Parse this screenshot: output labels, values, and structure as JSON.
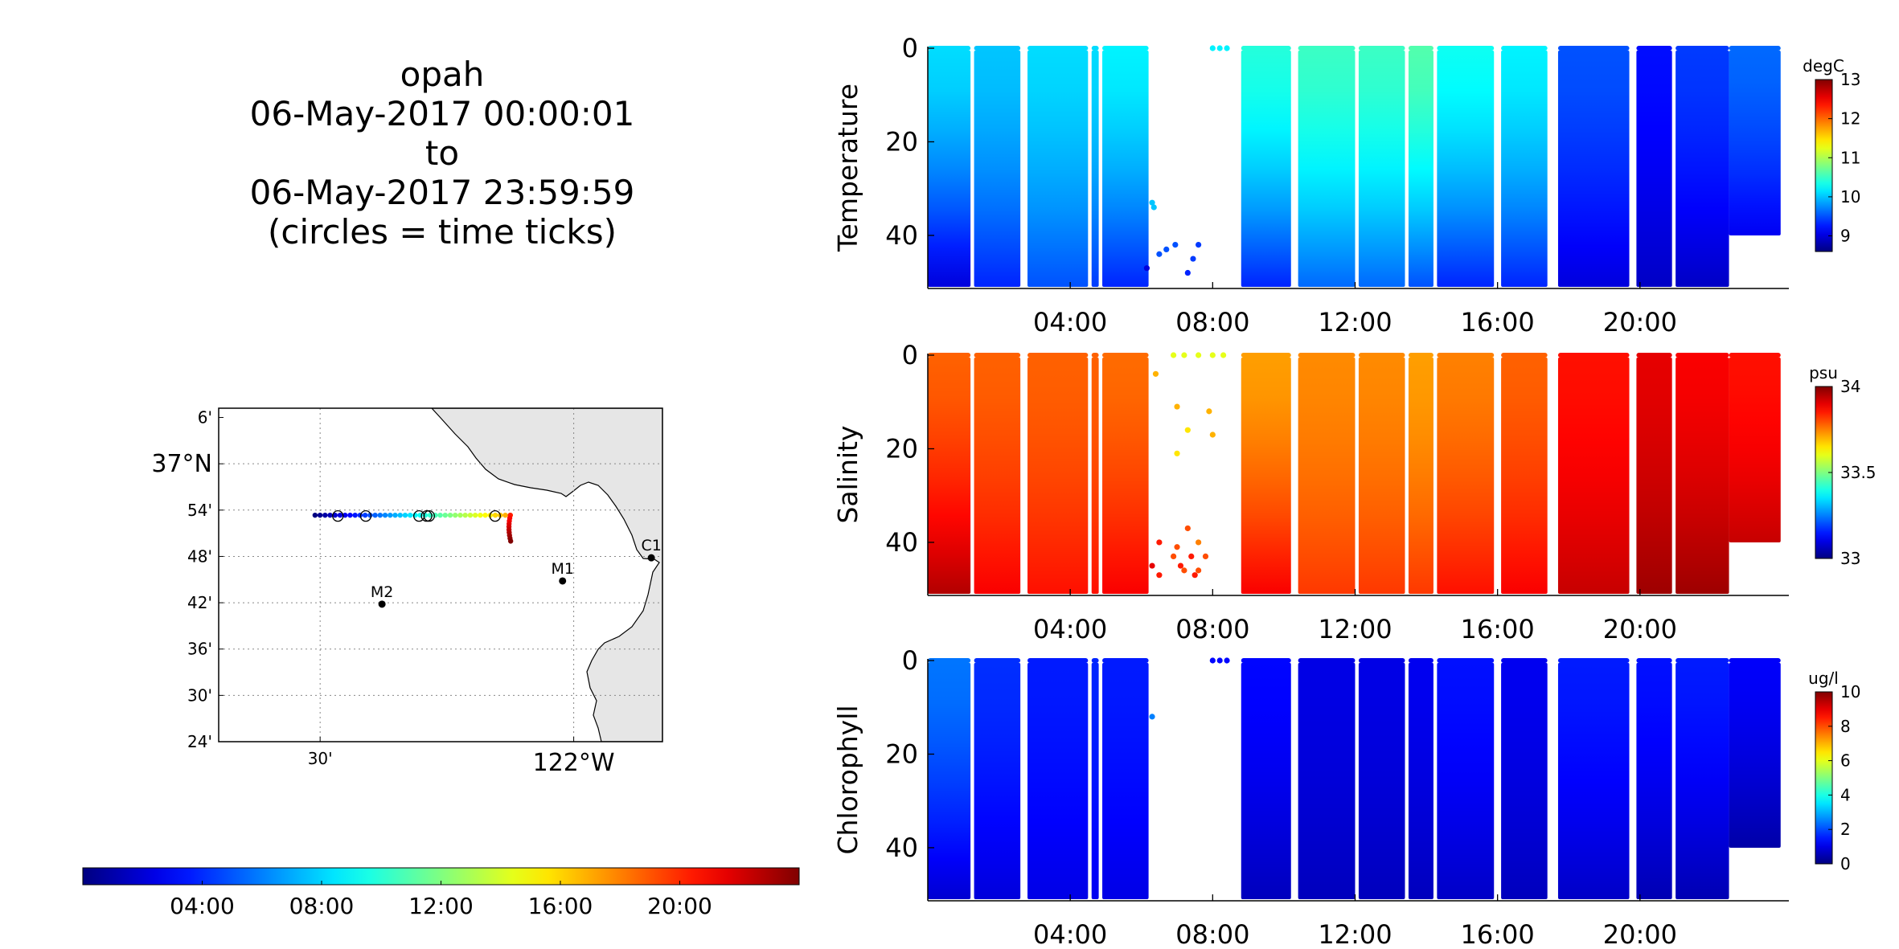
{
  "title_block": {
    "lines": [
      "opah",
      "06-May-2017 00:00:01",
      "to",
      "06-May-2017 23:59:59",
      "(circles = time ticks)"
    ]
  },
  "map": {
    "lat_ticks": [
      "6'",
      "37°N",
      "54'",
      "48'",
      "42'",
      "36'",
      "30'",
      "24'"
    ],
    "lon_ticks": [
      "30'",
      "122°W"
    ],
    "stations": [
      {
        "name": "M1",
        "lat": 36.747,
        "lon": -122.022
      },
      {
        "name": "M2",
        "lat": 36.697,
        "lon": -122.378
      },
      {
        "name": "C1",
        "lat": 36.797,
        "lon": -121.847
      }
    ],
    "track": {
      "lat_start": 36.889,
      "lat_end": 36.833,
      "lon_start": -122.51,
      "lon_end": -122.125
    },
    "time_circle_lons": [
      -122.465,
      -122.41,
      -122.305,
      -122.29,
      -122.285,
      -122.155
    ],
    "land_color": "#e6e6e6"
  },
  "time_colorbar": {
    "ticks": [
      "04:00",
      "08:00",
      "12:00",
      "16:00",
      "20:00"
    ],
    "tick_hours": [
      4,
      8,
      12,
      16,
      20
    ],
    "range_hours": [
      0,
      24
    ]
  },
  "chart_data": [
    {
      "type": "heatmap",
      "ylabel": "Temperature",
      "units": "degC",
      "cbar_range": [
        8.6,
        13
      ],
      "cbar_ticks": [
        "13",
        "12",
        "11",
        "10",
        "9"
      ],
      "cbar_tick_values": [
        13,
        12,
        11,
        10,
        9
      ],
      "x_ticks": [
        "04:00",
        "08:00",
        "12:00",
        "16:00",
        "20:00"
      ],
      "y_ticks": [
        "0",
        "20",
        "40"
      ],
      "y_range": [
        0,
        51
      ],
      "profile_groups": [
        {
          "start": 0.0,
          "end": 1.2,
          "surface": 10.1,
          "bottom": 9.0,
          "max_depth": 51
        },
        {
          "start": 1.3,
          "end": 2.6,
          "surface": 10.0,
          "bottom": 9.3,
          "max_depth": 51
        },
        {
          "start": 2.8,
          "end": 4.5,
          "surface": 10.1,
          "bottom": 9.5,
          "max_depth": 51
        },
        {
          "start": 4.6,
          "end": 4.8,
          "surface": 10.1,
          "bottom": 9.4,
          "max_depth": 51
        },
        {
          "start": 4.9,
          "end": 6.2,
          "surface": 10.2,
          "bottom": 9.3,
          "max_depth": 51
        },
        {
          "start": 8.8,
          "end": 10.2,
          "surface": 10.4,
          "bottom": 9.3,
          "max_depth": 51
        },
        {
          "start": 10.4,
          "end": 12.0,
          "surface": 10.5,
          "bottom": 9.6,
          "max_depth": 51
        },
        {
          "start": 12.1,
          "end": 13.4,
          "surface": 10.5,
          "bottom": 9.6,
          "max_depth": 51
        },
        {
          "start": 13.5,
          "end": 14.2,
          "surface": 10.6,
          "bottom": 9.5,
          "max_depth": 51
        },
        {
          "start": 14.3,
          "end": 15.9,
          "surface": 10.3,
          "bottom": 9.3,
          "max_depth": 51
        },
        {
          "start": 16.1,
          "end": 17.4,
          "surface": 10.2,
          "bottom": 9.3,
          "max_depth": 51
        },
        {
          "start": 17.7,
          "end": 19.7,
          "surface": 9.5,
          "bottom": 9.0,
          "max_depth": 51
        },
        {
          "start": 19.9,
          "end": 20.9,
          "surface": 9.2,
          "bottom": 8.9,
          "max_depth": 51
        },
        {
          "start": 21.0,
          "end": 22.5,
          "surface": 9.4,
          "bottom": 8.9,
          "max_depth": 51
        },
        {
          "start": 22.5,
          "end": 23.95,
          "surface": 9.6,
          "bottom": 9.1,
          "max_depth": 40
        }
      ],
      "points": [
        {
          "t": 6.3,
          "d": 33,
          "v": 10.0
        },
        {
          "t": 6.35,
          "d": 34,
          "v": 10.0
        },
        {
          "t": 6.5,
          "d": 44,
          "v": 9.5
        },
        {
          "t": 6.7,
          "d": 43,
          "v": 9.5
        },
        {
          "t": 6.95,
          "d": 42,
          "v": 9.5
        },
        {
          "t": 7.6,
          "d": 42,
          "v": 9.4
        },
        {
          "t": 7.45,
          "d": 45,
          "v": 9.4
        },
        {
          "t": 7.3,
          "d": 48,
          "v": 9.3
        },
        {
          "t": 6.15,
          "d": 47,
          "v": 9.0
        },
        {
          "t": 8.0,
          "d": 0,
          "v": 10.2
        },
        {
          "t": 8.2,
          "d": 0,
          "v": 10.2
        },
        {
          "t": 8.4,
          "d": 0,
          "v": 10.2
        }
      ]
    },
    {
      "type": "heatmap",
      "ylabel": "Salinity",
      "units": "psu",
      "cbar_range": [
        33,
        34
      ],
      "cbar_ticks": [
        "34",
        "33.5",
        "33"
      ],
      "cbar_tick_values": [
        34,
        33.5,
        33
      ],
      "x_ticks": [
        "04:00",
        "08:00",
        "12:00",
        "16:00",
        "20:00"
      ],
      "y_ticks": [
        "0",
        "20",
        "40"
      ],
      "y_range": [
        0,
        51
      ],
      "profile_groups": [
        {
          "start": 0.0,
          "end": 1.2,
          "surface": 33.78,
          "bottom": 33.95,
          "max_depth": 51
        },
        {
          "start": 1.3,
          "end": 2.6,
          "surface": 33.78,
          "bottom": 33.88,
          "max_depth": 51
        },
        {
          "start": 2.8,
          "end": 4.5,
          "surface": 33.78,
          "bottom": 33.86,
          "max_depth": 51
        },
        {
          "start": 4.6,
          "end": 4.8,
          "surface": 33.78,
          "bottom": 33.86,
          "max_depth": 51
        },
        {
          "start": 4.9,
          "end": 6.2,
          "surface": 33.77,
          "bottom": 33.88,
          "max_depth": 51
        },
        {
          "start": 8.8,
          "end": 10.2,
          "surface": 33.72,
          "bottom": 33.88,
          "max_depth": 51
        },
        {
          "start": 10.4,
          "end": 12.0,
          "surface": 33.74,
          "bottom": 33.82,
          "max_depth": 51
        },
        {
          "start": 12.1,
          "end": 13.4,
          "surface": 33.74,
          "bottom": 33.82,
          "max_depth": 51
        },
        {
          "start": 13.5,
          "end": 14.2,
          "surface": 33.72,
          "bottom": 33.82,
          "max_depth": 51
        },
        {
          "start": 14.3,
          "end": 15.9,
          "surface": 33.75,
          "bottom": 33.86,
          "max_depth": 51
        },
        {
          "start": 16.1,
          "end": 17.4,
          "surface": 33.78,
          "bottom": 33.88,
          "max_depth": 51
        },
        {
          "start": 17.7,
          "end": 19.7,
          "surface": 33.86,
          "bottom": 33.93,
          "max_depth": 51
        },
        {
          "start": 19.9,
          "end": 20.9,
          "surface": 33.9,
          "bottom": 33.97,
          "max_depth": 51
        },
        {
          "start": 21.0,
          "end": 22.5,
          "surface": 33.88,
          "bottom": 33.97,
          "max_depth": 51
        },
        {
          "start": 22.5,
          "end": 23.95,
          "surface": 33.86,
          "bottom": 33.93,
          "max_depth": 40
        }
      ],
      "points": [
        {
          "t": 6.4,
          "d": 4,
          "v": 33.7
        },
        {
          "t": 6.9,
          "d": 0,
          "v": 33.6
        },
        {
          "t": 7.2,
          "d": 0,
          "v": 33.6
        },
        {
          "t": 7.6,
          "d": 0,
          "v": 33.6
        },
        {
          "t": 8.0,
          "d": 0,
          "v": 33.6
        },
        {
          "t": 8.3,
          "d": 0,
          "v": 33.6
        },
        {
          "t": 7.0,
          "d": 11,
          "v": 33.7
        },
        {
          "t": 7.9,
          "d": 12,
          "v": 33.7
        },
        {
          "t": 7.3,
          "d": 16,
          "v": 33.65
        },
        {
          "t": 8.0,
          "d": 17,
          "v": 33.7
        },
        {
          "t": 7.0,
          "d": 21,
          "v": 33.65
        },
        {
          "t": 7.3,
          "d": 37,
          "v": 33.8
        },
        {
          "t": 6.5,
          "d": 40,
          "v": 33.85
        },
        {
          "t": 7.0,
          "d": 41,
          "v": 33.8
        },
        {
          "t": 7.6,
          "d": 40,
          "v": 33.75
        },
        {
          "t": 6.9,
          "d": 43,
          "v": 33.8
        },
        {
          "t": 7.4,
          "d": 43,
          "v": 33.85
        },
        {
          "t": 7.8,
          "d": 43,
          "v": 33.8
        },
        {
          "t": 7.1,
          "d": 45,
          "v": 33.85
        },
        {
          "t": 7.6,
          "d": 46,
          "v": 33.8
        },
        {
          "t": 6.5,
          "d": 47,
          "v": 33.85
        },
        {
          "t": 7.5,
          "d": 47,
          "v": 33.85
        },
        {
          "t": 6.3,
          "d": 45,
          "v": 33.9
        },
        {
          "t": 7.2,
          "d": 46,
          "v": 33.8
        }
      ]
    },
    {
      "type": "heatmap",
      "ylabel": "Chlorophyll",
      "units": "ug/l",
      "cbar_range": [
        0,
        10
      ],
      "cbar_ticks": [
        "10",
        "8",
        "6",
        "4",
        "2",
        "0"
      ],
      "cbar_tick_values": [
        10,
        8,
        6,
        4,
        2,
        0
      ],
      "x_ticks": [
        "04:00",
        "08:00",
        "12:00",
        "16:00",
        "20:00"
      ],
      "y_ticks": [
        "0",
        "20",
        "40"
      ],
      "y_range": [
        0,
        51
      ],
      "profile_groups": [
        {
          "start": 0.0,
          "end": 1.2,
          "surface": 2.4,
          "bottom": 0.8,
          "max_depth": 51
        },
        {
          "start": 1.3,
          "end": 2.6,
          "surface": 1.7,
          "bottom": 0.9,
          "max_depth": 51
        },
        {
          "start": 2.8,
          "end": 4.5,
          "surface": 1.5,
          "bottom": 1.0,
          "max_depth": 51
        },
        {
          "start": 4.6,
          "end": 4.8,
          "surface": 1.6,
          "bottom": 1.1,
          "max_depth": 51
        },
        {
          "start": 4.9,
          "end": 6.2,
          "surface": 1.5,
          "bottom": 1.0,
          "max_depth": 51
        },
        {
          "start": 8.8,
          "end": 10.2,
          "surface": 1.3,
          "bottom": 0.6,
          "max_depth": 51
        },
        {
          "start": 10.4,
          "end": 12.0,
          "surface": 1.0,
          "bottom": 0.6,
          "max_depth": 51
        },
        {
          "start": 12.1,
          "end": 13.4,
          "surface": 1.0,
          "bottom": 0.6,
          "max_depth": 51
        },
        {
          "start": 13.5,
          "end": 14.2,
          "surface": 1.1,
          "bottom": 0.6,
          "max_depth": 51
        },
        {
          "start": 14.3,
          "end": 15.9,
          "surface": 1.4,
          "bottom": 0.7,
          "max_depth": 51
        },
        {
          "start": 16.1,
          "end": 17.4,
          "surface": 1.1,
          "bottom": 0.6,
          "max_depth": 51
        },
        {
          "start": 17.7,
          "end": 19.7,
          "surface": 1.5,
          "bottom": 0.7,
          "max_depth": 51
        },
        {
          "start": 19.9,
          "end": 20.9,
          "surface": 1.4,
          "bottom": 0.5,
          "max_depth": 51
        },
        {
          "start": 21.0,
          "end": 22.5,
          "surface": 1.5,
          "bottom": 0.5,
          "max_depth": 51
        },
        {
          "start": 22.5,
          "end": 23.95,
          "surface": 1.2,
          "bottom": 0.4,
          "max_depth": 40
        }
      ],
      "points": [
        {
          "t": 6.3,
          "d": 12,
          "v": 2.5
        },
        {
          "t": 8.0,
          "d": 0,
          "v": 1.3
        },
        {
          "t": 8.2,
          "d": 0,
          "v": 1.3
        },
        {
          "t": 8.4,
          "d": 0,
          "v": 1.3
        }
      ]
    }
  ]
}
